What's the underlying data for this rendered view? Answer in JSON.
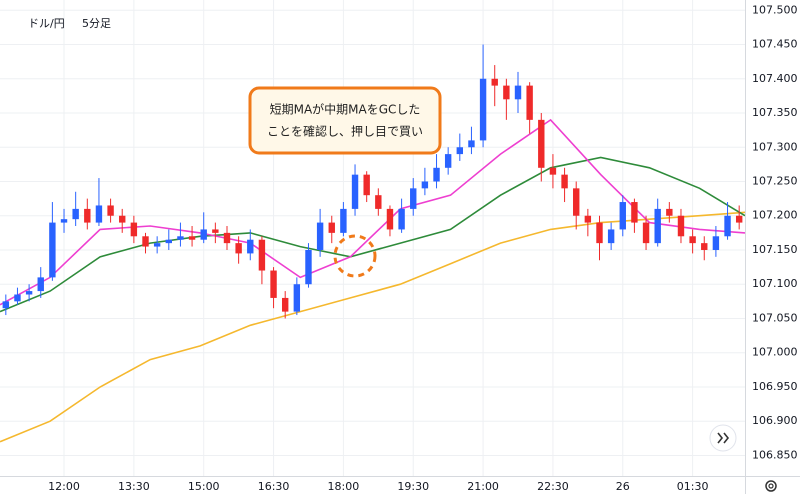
{
  "chart_data": {
    "type": "candlestick",
    "symbol": "ドル/円",
    "interval": "5分足",
    "annotation": [
      "短期MAが中期MAをGCした",
      "ことを確認し、押し目で買い"
    ],
    "up_color": "#2962ff",
    "down_color": "#ef2a2a",
    "grid": true,
    "xlim": [
      -0.5,
      63.5
    ],
    "xticks": [
      {
        "value": 5,
        "label": "12:00"
      },
      {
        "value": 11,
        "label": "13:30"
      },
      {
        "value": 17,
        "label": "15:00"
      },
      {
        "value": 23,
        "label": "16:30"
      },
      {
        "value": 29,
        "label": "18:00"
      },
      {
        "value": 35,
        "label": "19:30"
      },
      {
        "value": 41,
        "label": "21:00"
      },
      {
        "value": 47,
        "label": "22:30"
      },
      {
        "value": 53,
        "label": "26"
      },
      {
        "value": 59,
        "label": "01:30"
      }
    ],
    "ylim": [
      106.82,
      107.515
    ],
    "yticks": [
      {
        "value": 107.5,
        "label": "107.500"
      },
      {
        "value": 107.45,
        "label": "107.450"
      },
      {
        "value": 107.4,
        "label": "107.400"
      },
      {
        "value": 107.35,
        "label": "107.350"
      },
      {
        "value": 107.3,
        "label": "107.300"
      },
      {
        "value": 107.25,
        "label": "107.250"
      },
      {
        "value": 107.2,
        "label": "107.200"
      },
      {
        "value": 107.15,
        "label": "107.150"
      },
      {
        "value": 107.1,
        "label": "107.100"
      },
      {
        "value": 107.05,
        "label": "107.050"
      },
      {
        "value": 107,
        "label": "107.000"
      },
      {
        "value": 106.95,
        "label": "106.950"
      },
      {
        "value": 106.9,
        "label": "106.900"
      },
      {
        "value": 106.85,
        "label": "106.850"
      }
    ],
    "open": [
      107.065,
      107.075,
      107.085,
      107.09,
      107.11,
      107.19,
      107.195,
      107.21,
      107.19,
      107.215,
      107.2,
      107.19,
      107.17,
      107.155,
      107.16,
      107.165,
      107.17,
      107.165,
      107.18,
      107.175,
      107.16,
      107.145,
      107.165,
      107.12,
      107.08,
      107.06,
      107.1,
      107.15,
      107.19,
      107.175,
      107.21,
      107.26,
      107.23,
      107.21,
      107.18,
      107.21,
      107.24,
      107.25,
      107.27,
      107.29,
      107.3,
      107.31,
      107.4,
      107.39,
      107.37,
      107.39,
      107.34,
      107.27,
      107.26,
      107.24,
      107.2,
      107.19,
      107.16,
      107.18,
      107.22,
      107.19,
      107.16,
      107.21,
      107.2,
      107.17,
      107.16,
      107.15,
      107.17,
      107.2
    ],
    "high": [
      107.085,
      107.095,
      107.1,
      107.125,
      107.22,
      107.21,
      107.235,
      107.225,
      107.255,
      107.225,
      107.21,
      107.2,
      107.175,
      107.17,
      107.18,
      107.19,
      107.185,
      107.205,
      107.19,
      107.185,
      107.17,
      107.18,
      107.17,
      107.125,
      107.09,
      107.11,
      107.16,
      107.21,
      107.2,
      107.22,
      107.275,
      107.265,
      107.24,
      107.215,
      107.225,
      107.255,
      107.27,
      107.29,
      107.3,
      107.32,
      107.33,
      107.45,
      107.42,
      107.4,
      107.41,
      107.395,
      107.35,
      107.29,
      107.27,
      107.25,
      107.21,
      107.2,
      107.19,
      107.23,
      107.225,
      107.2,
      107.225,
      107.22,
      107.21,
      107.18,
      107.17,
      107.185,
      107.22,
      107.215
    ],
    "low": [
      107.055,
      107.07,
      107.075,
      107.08,
      107.105,
      107.175,
      107.185,
      107.18,
      107.185,
      107.19,
      107.175,
      107.16,
      107.145,
      107.145,
      107.15,
      107.155,
      107.155,
      107.16,
      107.16,
      107.15,
      107.13,
      107.135,
      107.1,
      107.065,
      107.05,
      107.055,
      107.095,
      107.14,
      107.16,
      107.17,
      107.2,
      107.22,
      107.2,
      107.17,
      107.175,
      107.2,
      107.23,
      107.24,
      107.26,
      107.28,
      107.29,
      107.3,
      107.36,
      107.34,
      107.35,
      107.32,
      107.25,
      107.24,
      107.22,
      107.18,
      107.17,
      107.135,
      107.15,
      107.17,
      107.175,
      107.15,
      107.155,
      107.19,
      107.16,
      107.145,
      107.135,
      107.14,
      107.165,
      107.18
    ],
    "close": [
      107.075,
      107.085,
      107.09,
      107.11,
      107.19,
      107.195,
      107.21,
      107.19,
      107.215,
      107.2,
      107.19,
      107.17,
      107.155,
      107.16,
      107.165,
      107.17,
      107.165,
      107.18,
      107.175,
      107.16,
      107.145,
      107.165,
      107.12,
      107.08,
      107.06,
      107.1,
      107.15,
      107.19,
      107.175,
      107.21,
      107.26,
      107.23,
      107.21,
      107.18,
      107.21,
      107.24,
      107.25,
      107.27,
      107.29,
      107.3,
      107.31,
      107.4,
      107.39,
      107.37,
      107.39,
      107.34,
      107.27,
      107.26,
      107.24,
      107.2,
      107.19,
      107.16,
      107.18,
      107.22,
      107.19,
      107.16,
      107.21,
      107.2,
      107.17,
      107.16,
      107.15,
      107.17,
      107.2,
      107.19
    ],
    "lines": [
      {
        "color": "#f5b82e",
        "x": [
          -0.5,
          3.8,
          8.1,
          12.4,
          16.7,
          21,
          25.3,
          29.6,
          33.9,
          38.2,
          42.5,
          46.8,
          51.1,
          55.3,
          59.6,
          63.5
        ],
        "values": [
          106.87,
          106.9,
          106.95,
          106.99,
          107.01,
          107.04,
          107.06,
          107.08,
          107.1,
          107.13,
          107.16,
          107.18,
          107.19,
          107.195,
          107.2,
          107.205
        ]
      },
      {
        "color": "#2e8b3a",
        "x": [
          -0.5,
          3.8,
          8.1,
          12.4,
          16.7,
          21,
          25.3,
          29.6,
          33.9,
          38.2,
          42.5,
          46.8,
          51.1,
          55.3,
          59.6,
          63.5
        ],
        "values": [
          107.06,
          107.09,
          107.14,
          107.16,
          107.17,
          107.175,
          107.155,
          107.14,
          107.16,
          107.18,
          107.23,
          107.27,
          107.285,
          107.27,
          107.24,
          107.2
        ]
      },
      {
        "color": "#ee3fd0",
        "x": [
          -0.5,
          3.8,
          8.1,
          12.4,
          16.7,
          21,
          25.3,
          29.6,
          33.9,
          38.2,
          42.5,
          46.8,
          51.1,
          55.3,
          59.6,
          63.5
        ],
        "values": [
          107.07,
          107.11,
          107.18,
          107.185,
          107.175,
          107.16,
          107.11,
          107.14,
          107.21,
          107.23,
          107.29,
          107.34,
          107.26,
          107.19,
          107.18,
          107.175
        ]
      }
    ]
  }
}
